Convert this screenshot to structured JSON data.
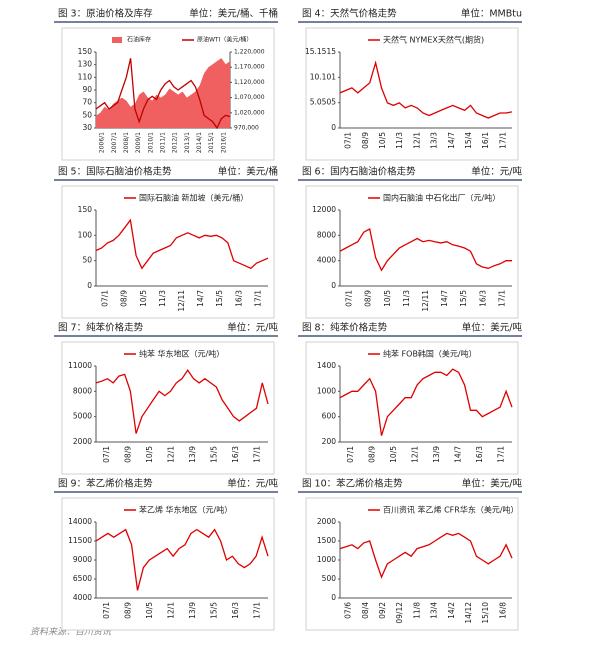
{
  "panels": [
    {
      "caption": "图 3：原油价格及库存",
      "unit": "单位：美元/桶、千桶",
      "chart": {
        "type": "combo",
        "x_labels": [
          "2006/1",
          "2007/1",
          "2008/1",
          "2009/1",
          "2010/1",
          "2011/1",
          "2012/1",
          "2013/1",
          "2014/1",
          "2015/1",
          "2016/1"
        ],
        "ylim": [
          30,
          150
        ],
        "yticks": [
          30,
          50,
          70,
          90,
          110,
          130,
          150
        ],
        "y2lim": [
          970000,
          1220000
        ],
        "y2ticks": [
          {
            "value": 970000,
            "label": "970,000"
          },
          {
            "value": 1020000,
            "label": "1,020,000"
          },
          {
            "value": 1070000,
            "label": "1,070,000"
          },
          {
            "value": 1120000,
            "label": "1,120,000"
          },
          {
            "value": 1170000,
            "label": "1,170,000"
          },
          {
            "value": 1220000,
            "label": "1,220,000"
          }
        ],
        "series": [
          {
            "name": "石油库存",
            "color": "#f06060",
            "kind": "area",
            "axis": "y2",
            "values": [
              1010000,
              1020000,
              1040000,
              1030000,
              1050000,
              1060000,
              1070000,
              1060000,
              1040000,
              1050000,
              1080000,
              1090000,
              1070000,
              1060000,
              1080000,
              1070000,
              1080000,
              1100000,
              1090000,
              1080000,
              1090000,
              1070000,
              1080000,
              1090000,
              1110000,
              1150000,
              1170000,
              1180000,
              1190000,
              1200000,
              1180000,
              1190000
            ]
          },
          {
            "name": "原油WTI（美元/桶）",
            "color": "#c00000",
            "kind": "line",
            "values": [
              60,
              65,
              70,
              60,
              65,
              70,
              90,
              110,
              140,
              60,
              40,
              60,
              75,
              80,
              75,
              90,
              100,
              105,
              95,
              90,
              95,
              100,
              105,
              95,
              75,
              50,
              45,
              40,
              30,
              45,
              50,
              48
            ]
          }
        ]
      }
    },
    {
      "caption": "图 4：天然气价格走势",
      "unit": "单位：MMBtu",
      "chart": {
        "type": "line",
        "x_labels": [
          "07/1",
          "08/9",
          "10/5",
          "11/3",
          "12/1",
          "13/3",
          "14/7",
          "15/4",
          "16/1",
          "17/1"
        ],
        "ylim": [
          0,
          15.1515
        ],
        "yticks": [
          0,
          5.0505,
          10.101,
          15.1515
        ],
        "series": [
          {
            "name": "天然气 NYMEX天然气(期货)",
            "color": "#e00000",
            "values": [
              7,
              7.5,
              8,
              7,
              8,
              9,
              13,
              8,
              5,
              4.5,
              5,
              4,
              4.5,
              4,
              3,
              2.5,
              3,
              3.5,
              4,
              4.5,
              4,
              3.5,
              4.5,
              3,
              2.5,
              2,
              2.5,
              3,
              3,
              3.2
            ]
          }
        ]
      }
    },
    {
      "caption": "图 5：国际石脑油价格走势",
      "unit": "单位：美元/桶",
      "chart": {
        "type": "line",
        "x_labels": [
          "07/1",
          "08/9",
          "10/5",
          "11/3",
          "12/11",
          "14/7",
          "15/5",
          "16/3",
          "17/1"
        ],
        "ylim": [
          0,
          150
        ],
        "yticks": [
          0,
          50,
          100,
          150
        ],
        "series": [
          {
            "name": "国际石脑油 新加坡（美元/桶）",
            "color": "#e00000",
            "values": [
              70,
              75,
              85,
              90,
              100,
              115,
              130,
              60,
              35,
              50,
              65,
              70,
              75,
              80,
              95,
              100,
              105,
              100,
              95,
              100,
              98,
              100,
              95,
              85,
              50,
              45,
              40,
              35,
              45,
              50,
              55
            ]
          }
        ]
      }
    },
    {
      "caption": "图 6：国内石脑油价格走势",
      "unit": "单位：元/吨",
      "chart": {
        "type": "line",
        "x_labels": [
          "07/1",
          "08/9",
          "10/5",
          "11/3",
          "12/11",
          "14/7",
          "15/5",
          "16/3",
          "17/1"
        ],
        "ylim": [
          0,
          12000
        ],
        "yticks": [
          0,
          4000,
          8000,
          12000
        ],
        "series": [
          {
            "name": "国内石脑油 中石化出厂（元/吨）",
            "color": "#e00000",
            "values": [
              5500,
              6000,
              6500,
              7000,
              8500,
              9000,
              4500,
              2500,
              4000,
              5000,
              6000,
              6500,
              7000,
              7500,
              7000,
              7200,
              7000,
              6800,
              7000,
              6500,
              6300,
              6000,
              5500,
              3500,
              3000,
              2800,
              3200,
              3500,
              4000,
              4000
            ]
          }
        ]
      }
    },
    {
      "caption": "图 7：纯苯价格走势",
      "unit": "单位：元/吨",
      "chart": {
        "type": "line",
        "x_labels": [
          "07/1",
          "08/9",
          "10/5",
          "12/1",
          "13/9",
          "15/5",
          "16/3",
          "17/1"
        ],
        "ylim": [
          2000,
          11000
        ],
        "yticks": [
          2000,
          5000,
          8000,
          11000
        ],
        "series": [
          {
            "name": "纯苯 华东地区（元/吨）",
            "color": "#e00000",
            "values": [
              9000,
              9200,
              9500,
              9000,
              9800,
              10000,
              8000,
              3000,
              5000,
              6000,
              7000,
              8000,
              7500,
              8000,
              9000,
              9500,
              10500,
              9500,
              9000,
              9500,
              9000,
              8500,
              7000,
              6000,
              5000,
              4500,
              5000,
              5500,
              6000,
              9000,
              6500
            ]
          }
        ]
      }
    },
    {
      "caption": "图 8：纯苯价格走势",
      "unit": "单位：美元/吨",
      "chart": {
        "type": "line",
        "x_labels": [
          "07/1",
          "08/9",
          "10/5",
          "12/1",
          "13/9",
          "14/7",
          "16/3",
          "17/1"
        ],
        "ylim": [
          200,
          1400
        ],
        "yticks": [
          200,
          600,
          1000,
          1400
        ],
        "series": [
          {
            "name": "纯苯 FOB韩国（美元/吨）",
            "color": "#e00000",
            "values": [
              900,
              950,
              1000,
              1000,
              1100,
              1200,
              1000,
              300,
              600,
              700,
              800,
              900,
              900,
              1100,
              1200,
              1250,
              1300,
              1300,
              1250,
              1350,
              1300,
              1100,
              700,
              700,
              600,
              650,
              700,
              750,
              1000,
              750
            ]
          }
        ]
      }
    },
    {
      "caption": "图 9：苯乙烯价格走势",
      "unit": "单位：元/吨",
      "chart": {
        "type": "line",
        "x_labels": [
          "07/1",
          "08/9",
          "10/5",
          "12/1",
          "13/9",
          "15/5",
          "16/3",
          "17/1"
        ],
        "ylim": [
          4000,
          14000
        ],
        "yticks": [
          4000,
          6500,
          9000,
          11500,
          14000
        ],
        "series": [
          {
            "name": "苯乙烯 华东地区（元/吨）",
            "color": "#e00000",
            "values": [
              11500,
              12000,
              12500,
              12000,
              12500,
              13000,
              11000,
              5000,
              8000,
              9000,
              9500,
              10000,
              10500,
              9500,
              10500,
              11000,
              12500,
              13000,
              12500,
              12000,
              13000,
              11500,
              9000,
              9500,
              8500,
              8000,
              8500,
              9500,
              12000,
              9500
            ]
          }
        ]
      }
    },
    {
      "caption": "图 10：苯乙烯价格走势",
      "unit": "单位：美元/吨",
      "chart": {
        "type": "line",
        "x_labels": [
          "07/6",
          "08/4",
          "09/2",
          "09/12",
          "11/8",
          "13/4",
          "14/2",
          "14/12",
          "15/10",
          "16/8"
        ],
        "ylim": [
          0,
          2000
        ],
        "yticks": [
          0,
          500,
          1000,
          1500,
          2000
        ],
        "series": [
          {
            "name": "百川资讯 苯乙烯 CFR华东（美元/吨）",
            "color": "#e00000",
            "values": [
              1300,
              1350,
              1400,
              1300,
              1450,
              1500,
              1000,
              550,
              900,
              1000,
              1100,
              1200,
              1100,
              1300,
              1350,
              1400,
              1500,
              1600,
              1700,
              1650,
              1700,
              1600,
              1500,
              1100,
              1000,
              900,
              1000,
              1100,
              1400,
              1050
            ]
          }
        ]
      }
    }
  ],
  "source": "资料来源：百川资讯"
}
